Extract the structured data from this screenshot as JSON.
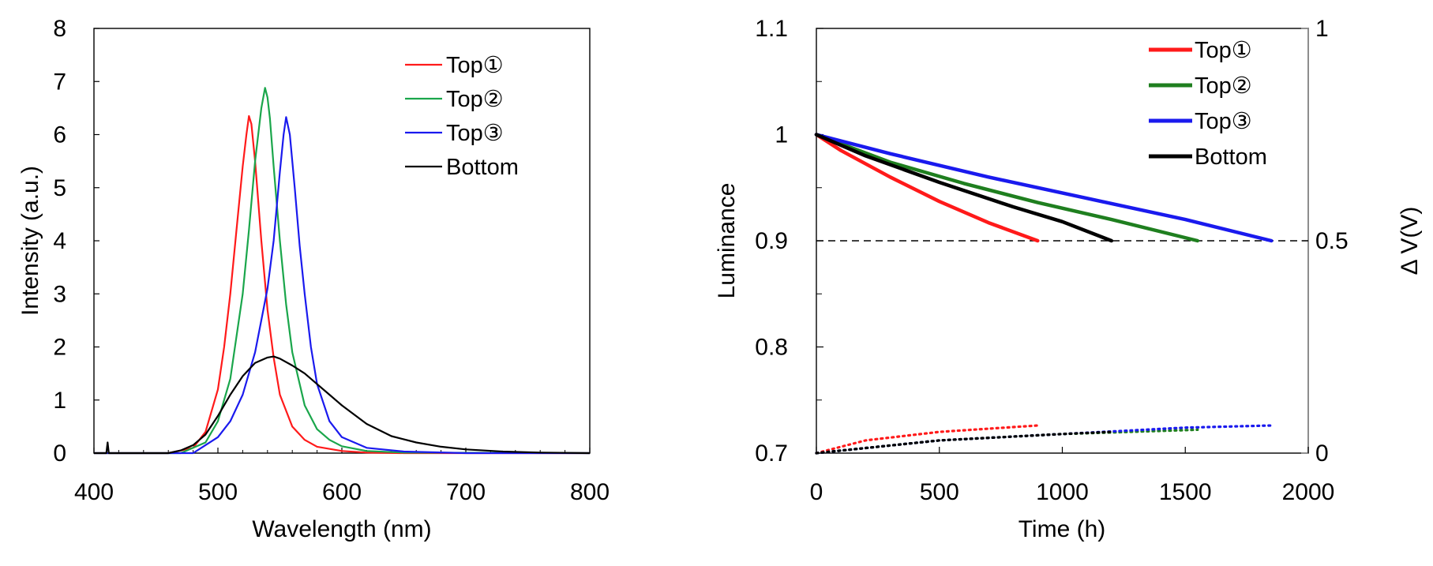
{
  "chart_data": [
    {
      "type": "line",
      "xlabel": "Wavelength (nm)",
      "ylabel": "Intensity (a.u.)",
      "xlim": [
        400,
        800
      ],
      "ylim": [
        0,
        8
      ],
      "xticks": [
        "400",
        "500",
        "600",
        "700",
        "800"
      ],
      "yticks": [
        "0",
        "1",
        "2",
        "3",
        "4",
        "5",
        "6",
        "7",
        "8"
      ],
      "legend_position": "top-right",
      "series": [
        {
          "name": "Top①",
          "color": "#ff1a1a",
          "x": [
            400,
            460,
            480,
            490,
            500,
            505,
            510,
            515,
            520,
            523,
            525,
            527,
            530,
            535,
            540,
            545,
            550,
            560,
            570,
            580,
            600,
            620,
            650,
            800
          ],
          "y": [
            0,
            0,
            0.1,
            0.4,
            1.2,
            2.0,
            3.0,
            4.2,
            5.4,
            6.0,
            6.35,
            6.2,
            5.5,
            4.0,
            2.7,
            1.8,
            1.1,
            0.5,
            0.25,
            0.12,
            0.04,
            0.01,
            0,
            0
          ]
        },
        {
          "name": "Top②",
          "color": "#1aa64b",
          "x": [
            400,
            470,
            490,
            500,
            510,
            520,
            525,
            530,
            535,
            538,
            540,
            542,
            545,
            550,
            555,
            560,
            570,
            580,
            590,
            600,
            620,
            650,
            800
          ],
          "y": [
            0,
            0,
            0.2,
            0.6,
            1.4,
            3.0,
            4.2,
            5.5,
            6.5,
            6.88,
            6.7,
            6.3,
            5.4,
            4.0,
            2.8,
            1.9,
            0.9,
            0.45,
            0.25,
            0.13,
            0.04,
            0.01,
            0
          ]
        },
        {
          "name": "Top③",
          "color": "#1a1aee",
          "x": [
            400,
            480,
            500,
            510,
            520,
            530,
            540,
            545,
            550,
            553,
            555,
            558,
            562,
            566,
            570,
            575,
            580,
            590,
            600,
            620,
            650,
            700,
            800
          ],
          "y": [
            0,
            0,
            0.3,
            0.6,
            1.1,
            1.9,
            3.1,
            4.0,
            5.3,
            6.0,
            6.33,
            6.0,
            5.0,
            3.9,
            3.0,
            2.0,
            1.3,
            0.6,
            0.3,
            0.1,
            0.03,
            0,
            0
          ]
        },
        {
          "name": "Bottom",
          "color": "#000000",
          "x": [
            400,
            410,
            411,
            412,
            460,
            470,
            480,
            490,
            500,
            510,
            520,
            530,
            540,
            545,
            550,
            560,
            570,
            580,
            590,
            600,
            620,
            640,
            660,
            680,
            700,
            730,
            760,
            800
          ],
          "y": [
            0,
            0,
            0.2,
            0,
            0,
            0.05,
            0.15,
            0.35,
            0.7,
            1.1,
            1.45,
            1.7,
            1.8,
            1.82,
            1.78,
            1.65,
            1.5,
            1.3,
            1.1,
            0.9,
            0.55,
            0.32,
            0.2,
            0.12,
            0.07,
            0.03,
            0.01,
            0
          ]
        }
      ]
    },
    {
      "type": "line",
      "xlabel": "Time (h)",
      "ylabel": "Luminance",
      "y2label": "Δ V(V)",
      "xlim": [
        0,
        2000
      ],
      "ylim": [
        0.7,
        1.1
      ],
      "y2lim": [
        0,
        1
      ],
      "xticks": [
        "0",
        "500",
        "1000",
        "1500",
        "2000"
      ],
      "yticks": [
        "0.7",
        "0.8",
        "0.9",
        "1",
        "1.1"
      ],
      "y2ticks": [
        "0",
        "0.5",
        "1"
      ],
      "reference_line": {
        "y": 0.9,
        "style": "dashed"
      },
      "legend_position": "top-right",
      "series": [
        {
          "name": "Top①",
          "color": "#ff1a1a",
          "axis": "left",
          "x": [
            0,
            100,
            300,
            500,
            700,
            900
          ],
          "y": [
            1.0,
            0.985,
            0.96,
            0.937,
            0.917,
            0.9
          ]
        },
        {
          "name": "Top②",
          "color": "#1f7f1f",
          "axis": "left",
          "x": [
            0,
            300,
            600,
            900,
            1200,
            1550
          ],
          "y": [
            1.0,
            0.974,
            0.954,
            0.936,
            0.92,
            0.9
          ]
        },
        {
          "name": "Top③",
          "color": "#1a1aee",
          "axis": "left",
          "x": [
            0,
            300,
            700,
            1100,
            1500,
            1850
          ],
          "y": [
            1.0,
            0.982,
            0.96,
            0.94,
            0.92,
            0.9
          ]
        },
        {
          "name": "Bottom",
          "color": "#000000",
          "axis": "left",
          "x": [
            0,
            200,
            500,
            800,
            1000,
            1200
          ],
          "y": [
            1.0,
            0.98,
            0.955,
            0.932,
            0.918,
            0.9
          ]
        },
        {
          "color": "#ff1a1a",
          "axis": "right",
          "style": "dotted",
          "x": [
            0,
            200,
            500,
            900
          ],
          "y": [
            0.0,
            0.03,
            0.05,
            0.065
          ]
        },
        {
          "color": "#1f7f1f",
          "axis": "right",
          "style": "dotted",
          "x": [
            0,
            500,
            1000,
            1550
          ],
          "y": [
            0.0,
            0.03,
            0.045,
            0.055
          ]
        },
        {
          "color": "#1a1aee",
          "axis": "right",
          "style": "dotted",
          "x": [
            0,
            500,
            1000,
            1500,
            1850
          ],
          "y": [
            0.0,
            0.03,
            0.045,
            0.06,
            0.065
          ]
        },
        {
          "color": "#000000",
          "axis": "right",
          "style": "dotted",
          "x": [
            0,
            500,
            1000,
            1200
          ],
          "y": [
            0.0,
            0.03,
            0.045,
            0.05
          ]
        }
      ]
    }
  ]
}
